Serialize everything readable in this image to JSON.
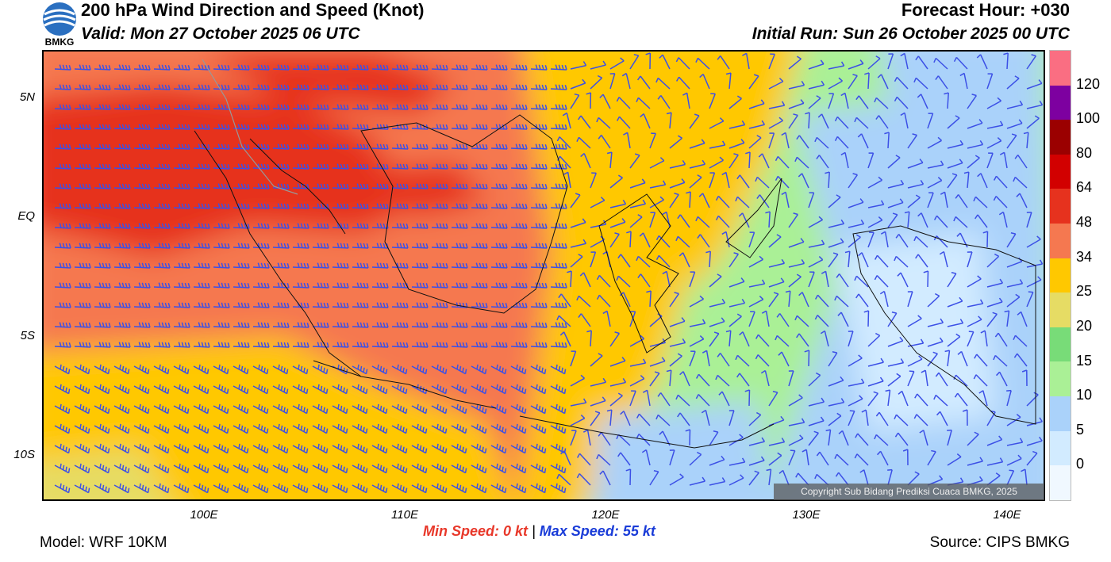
{
  "header": {
    "title": "200 hPa Wind Direction and Speed (Knot)",
    "valid": "Valid: Mon 27 October 2025 06 UTC",
    "forecast_hour": "Forecast Hour: +030",
    "initial_run": "Initial Run: Sun 26 October 2025 00 UTC",
    "logo_text": "BMKG"
  },
  "map": {
    "lat_labels": [
      "5N",
      "EQ",
      "5S",
      "10S"
    ],
    "lon_labels": [
      "100E",
      "110E",
      "120E",
      "130E",
      "140E"
    ],
    "copyright": "Copyright Sub Bidang Prediksi Cuaca BMKG, 2025"
  },
  "colorbar": {
    "labels": [
      "120",
      "100",
      "80",
      "64",
      "48",
      "34",
      "25",
      "20",
      "15",
      "10",
      "5",
      "0"
    ],
    "colors": [
      "#fa6e82",
      "#7d00a0",
      "#9b0000",
      "#d20000",
      "#e6321e",
      "#f57850",
      "#ffc800",
      "#e6dc64",
      "#78dc78",
      "#aaf096",
      "#aad2fa",
      "#d2ebff",
      "#f0f8ff"
    ]
  },
  "footer": {
    "min_label": "Min Speed:",
    "min_value": "0 kt",
    "separator": "|",
    "max_label": "Max Speed:",
    "max_value": "55 kt",
    "model": "Model: WRF 10KM",
    "source": "Source: CIPS BMKG"
  },
  "colors": {
    "min": "#e8382a",
    "max": "#1a3cd8",
    "barb": "#3c50e6",
    "coast": "#111111"
  }
}
